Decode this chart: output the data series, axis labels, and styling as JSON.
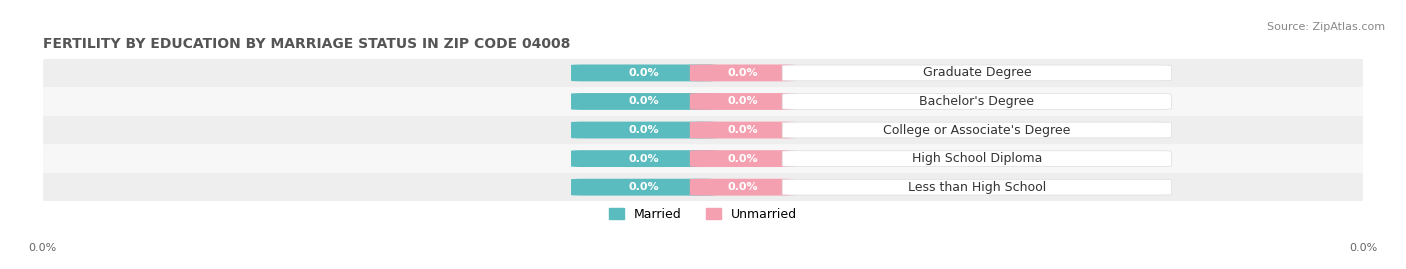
{
  "title": "FERTILITY BY EDUCATION BY MARRIAGE STATUS IN ZIP CODE 04008",
  "source": "Source: ZipAtlas.com",
  "categories": [
    "Less than High School",
    "High School Diploma",
    "College or Associate's Degree",
    "Bachelor's Degree",
    "Graduate Degree"
  ],
  "married_values": [
    0.0,
    0.0,
    0.0,
    0.0,
    0.0
  ],
  "unmarried_values": [
    0.0,
    0.0,
    0.0,
    0.0,
    0.0
  ],
  "married_color": "#5bbcbf",
  "unmarried_color": "#f4a0b0",
  "bar_bg_color": "#e8e8e8",
  "row_bg_color_odd": "#f0f0f0",
  "row_bg_color_even": "#fafafa",
  "label_text": "0.0%",
  "married_label": "Married",
  "unmarried_label": "Unmarried",
  "title_fontsize": 10,
  "source_fontsize": 8,
  "label_fontsize": 8,
  "category_fontsize": 9,
  "legend_fontsize": 9,
  "axis_label_fontsize": 8,
  "background_color": "#ffffff"
}
